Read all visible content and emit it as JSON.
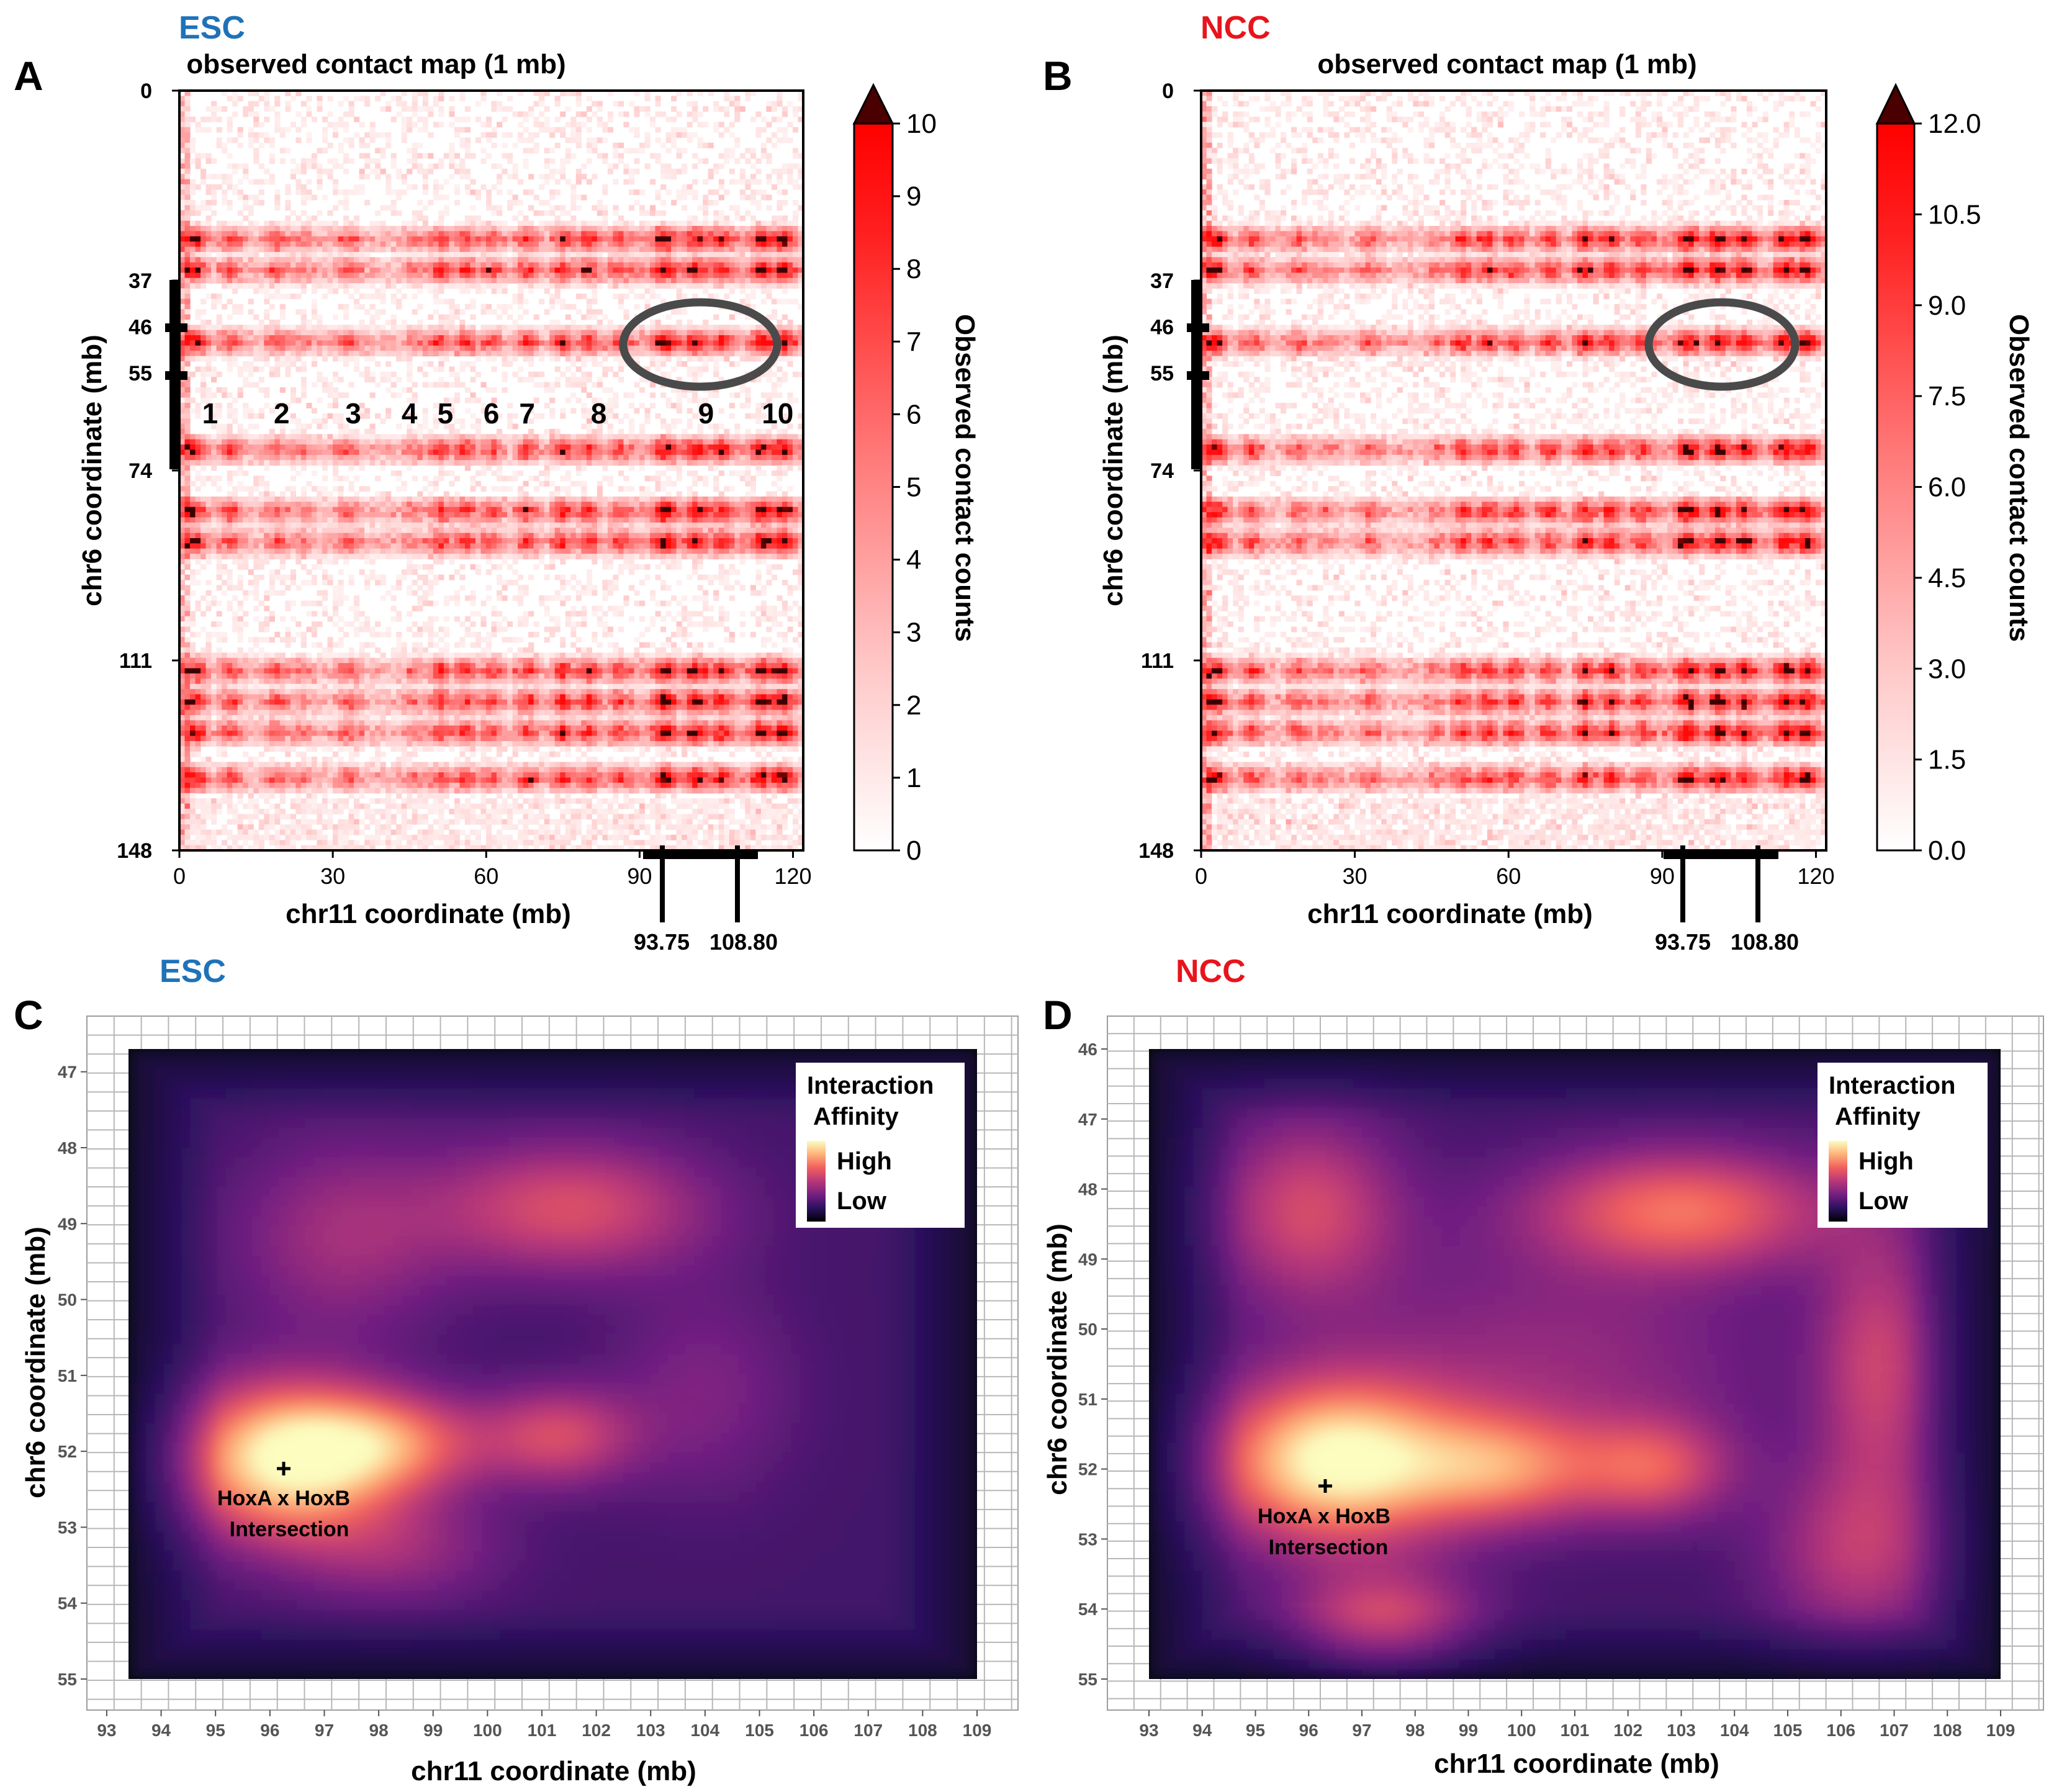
{
  "panels": {
    "A": {
      "letter": "A",
      "cell": "ESC",
      "cell_color": "#1f72b8"
    },
    "B": {
      "letter": "B",
      "cell": "NCC",
      "cell_color": "#e8141c"
    },
    "C": {
      "letter": "C",
      "cell": "ESC",
      "cell_color": "#1f72b8"
    },
    "D": {
      "letter": "D",
      "cell": "NCC",
      "cell_color": "#e8141c"
    }
  },
  "heat_text": {
    "title": "observed contact map (1 mb)",
    "ylabel": "chr6 coordinate (mb)",
    "xlabel": "chr11 coordinate (mb)",
    "colorbar_label": "Observed contact counts",
    "marker_labels": [
      "93.75",
      "108.80"
    ],
    "cluster_labels": [
      "1",
      "2",
      "3",
      "4",
      "5",
      "6",
      "7",
      "8",
      "9",
      "10"
    ]
  },
  "density_text": {
    "xlabel": "chr11 coordinate (mb)",
    "ylabel": "chr6 coordinate (mb)",
    "legend_title_1": "Interaction",
    "legend_title_2": "Affinity",
    "legend_high": "High",
    "legend_low": "Low",
    "annotation_1": "HoxA x HoxB",
    "annotation_2": "Intersection"
  },
  "colors": {
    "contact_low": "#ffffff",
    "contact_mid": "#ff5050",
    "contact_high": "#ff0000",
    "contact_extreme": "#4a0000",
    "magma": [
      "#000004",
      "#2c115f",
      "#721f81",
      "#b73779",
      "#f1605d",
      "#feb078",
      "#fcfdbf"
    ]
  },
  "chart_data": [
    {
      "id": "A",
      "type": "heatmap",
      "title": "observed contact map (1 mb)",
      "xlabel": "chr11 coordinate (mb)",
      "ylabel": "chr6 coordinate (mb)",
      "xlim": [
        0,
        122
      ],
      "ylim": [
        0,
        148
      ],
      "x_ticks": [
        0,
        30,
        60,
        90,
        120
      ],
      "y_ticks": [
        0,
        37,
        46,
        55,
        74,
        111,
        148
      ],
      "colorbar": {
        "label": "Observed contact counts",
        "min": 0,
        "max": 10,
        "ticks": [
          "0",
          "1",
          "2",
          "3",
          "4",
          "5",
          "6",
          "7",
          "8",
          "9",
          "10"
        ],
        "extend": "max"
      },
      "highlight_x": [
        93.75,
        108.8
      ],
      "highlight_y": [
        37,
        46,
        55,
        74
      ],
      "ellipse": {
        "x_center": 101,
        "y_center": 50,
        "label_cluster": "9"
      },
      "cluster_labels": [
        {
          "label": "1",
          "x": 6
        },
        {
          "label": "2",
          "x": 20
        },
        {
          "label": "3",
          "x": 34
        },
        {
          "label": "4",
          "x": 45
        },
        {
          "label": "5",
          "x": 52
        },
        {
          "label": "6",
          "x": 61
        },
        {
          "label": "7",
          "x": 68
        },
        {
          "label": "8",
          "x": 82
        },
        {
          "label": "9",
          "x": 103
        },
        {
          "label": "10",
          "x": 117
        }
      ],
      "row_bands_chr6": [
        29,
        35,
        49,
        70,
        82,
        88,
        113,
        119,
        125,
        134
      ],
      "column_blocks_chr11": [
        3,
        10,
        19,
        24,
        33,
        46,
        51,
        56,
        61,
        68,
        75,
        80,
        86,
        95,
        101,
        106,
        114,
        118
      ],
      "column_weights": [
        1,
        0.6,
        0.5,
        0.3,
        0.5,
        0.3,
        0.7,
        0.7,
        0.6,
        0.7,
        0.8,
        0.8,
        0.6,
        1,
        0.9,
        0.7,
        0.9,
        1
      ]
    },
    {
      "id": "B",
      "type": "heatmap",
      "title": "observed contact map (1 mb)",
      "xlabel": "chr11 coordinate (mb)",
      "ylabel": "chr6 coordinate (mb)",
      "xlim": [
        0,
        122
      ],
      "ylim": [
        0,
        148
      ],
      "x_ticks": [
        0,
        30,
        60,
        90,
        120
      ],
      "y_ticks": [
        0,
        37,
        46,
        55,
        74,
        111,
        148
      ],
      "colorbar": {
        "label": "Observed contact counts",
        "min": 0,
        "max": 12,
        "ticks": [
          "0.0",
          "1.5",
          "3.0",
          "4.5",
          "6.0",
          "7.5",
          "9.0",
          "10.5",
          "12.0"
        ],
        "extend": "max"
      },
      "highlight_x": [
        93.75,
        108.8
      ],
      "highlight_y": [
        37,
        46,
        55,
        74
      ],
      "ellipse": {
        "x_center": 101,
        "y_center": 50
      },
      "row_bands_chr6": [
        29,
        35,
        49,
        70,
        82,
        88,
        113,
        119,
        125,
        134
      ],
      "column_blocks_chr11": [
        3,
        10,
        19,
        24,
        33,
        46,
        51,
        56,
        61,
        68,
        75,
        80,
        86,
        95,
        101,
        106,
        114,
        118
      ],
      "column_weights": [
        1,
        0.6,
        0.5,
        0.3,
        0.5,
        0.3,
        0.7,
        0.8,
        0.7,
        0.7,
        0.9,
        0.9,
        0.7,
        1,
        0.9,
        0.8,
        0.9,
        1
      ]
    },
    {
      "id": "C",
      "type": "heatmap",
      "xlabel": "chr11 coordinate (mb)",
      "ylabel": "chr6 coordinate (mb)",
      "xlim": [
        92.6,
        109.3
      ],
      "ylim": [
        46.55,
        55.5
      ],
      "x_ticks": [
        93,
        94,
        95,
        96,
        97,
        98,
        99,
        100,
        101,
        102,
        103,
        104,
        105,
        106,
        107,
        108,
        109
      ],
      "y_ticks": [
        47,
        48,
        49,
        50,
        51,
        52,
        53,
        54,
        55
      ],
      "plot_range_x": [
        93.4,
        109
      ],
      "plot_range_y": [
        46.7,
        55
      ],
      "annotation": {
        "text": "HoxA x HoxB Intersection",
        "x": 96.3,
        "y": 52.2
      },
      "hotspots": [
        {
          "x": 96.3,
          "y": 52.1,
          "sx": 1.4,
          "sy": 0.7,
          "w": 1.0
        },
        {
          "x": 98.3,
          "y": 51.9,
          "sx": 1.2,
          "sy": 0.45,
          "w": 0.5
        },
        {
          "x": 101.3,
          "y": 51.8,
          "sx": 1.0,
          "sy": 0.45,
          "w": 0.45
        },
        {
          "x": 101.5,
          "y": 48.8,
          "sx": 1.8,
          "sy": 0.6,
          "w": 0.48
        },
        {
          "x": 97.3,
          "y": 49.2,
          "sx": 1.4,
          "sy": 0.9,
          "w": 0.28
        },
        {
          "x": 98.3,
          "y": 53.3,
          "sx": 1.4,
          "sy": 0.5,
          "w": 0.25
        },
        {
          "x": 104,
          "y": 51.2,
          "sx": 1.2,
          "sy": 1.0,
          "w": 0.18
        }
      ]
    },
    {
      "id": "D",
      "type": "heatmap",
      "xlabel": "chr11 coordinate (mb)",
      "ylabel": "chr6 coordinate (mb)",
      "xlim": [
        92.6,
        109.3
      ],
      "ylim": [
        45.65,
        55.5
      ],
      "x_ticks": [
        93,
        94,
        95,
        96,
        97,
        98,
        99,
        100,
        101,
        102,
        103,
        104,
        105,
        106,
        107,
        108,
        109
      ],
      "y_ticks": [
        46,
        47,
        48,
        49,
        50,
        51,
        52,
        53,
        54,
        55
      ],
      "plot_range_x": [
        93,
        109
      ],
      "plot_range_y": [
        46,
        55
      ],
      "annotation": {
        "text": "HoxA x HoxB Intersection",
        "x": 96.3,
        "y": 52.2
      },
      "hotspots": [
        {
          "x": 96.5,
          "y": 51.9,
          "sx": 1.6,
          "sy": 0.8,
          "w": 1.0
        },
        {
          "x": 99.7,
          "y": 52.0,
          "sx": 1.3,
          "sy": 0.55,
          "w": 0.55
        },
        {
          "x": 102.5,
          "y": 52.0,
          "sx": 1.0,
          "sy": 0.5,
          "w": 0.45
        },
        {
          "x": 103.0,
          "y": 48.3,
          "sx": 2.0,
          "sy": 0.6,
          "w": 0.6
        },
        {
          "x": 96.0,
          "y": 48.3,
          "sx": 1.2,
          "sy": 0.9,
          "w": 0.45
        },
        {
          "x": 97.4,
          "y": 54.3,
          "sx": 1.2,
          "sy": 0.6,
          "w": 0.5
        },
        {
          "x": 106.7,
          "y": 50.5,
          "sx": 0.8,
          "sy": 1.4,
          "w": 0.4
        },
        {
          "x": 106.3,
          "y": 53.2,
          "sx": 1.2,
          "sy": 0.9,
          "w": 0.35
        },
        {
          "x": 100.5,
          "y": 50.5,
          "sx": 3.0,
          "sy": 1.2,
          "w": 0.25
        }
      ]
    }
  ]
}
